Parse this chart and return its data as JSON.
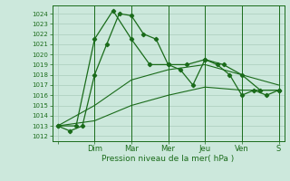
{
  "title": "",
  "xlabel": "Pression niveau de la mer( hPa )",
  "bg_color": "#cce8dc",
  "line_color": "#1a6b1a",
  "grid_color": "#aaccbb",
  "ylim": [
    1011.5,
    1024.8
  ],
  "yticks": [
    1012,
    1013,
    1014,
    1015,
    1016,
    1017,
    1018,
    1019,
    1020,
    1021,
    1022,
    1023,
    1024
  ],
  "day_labels": [
    "",
    "Dim",
    "Mar",
    "Mer",
    "Jeu",
    "Ven",
    "S"
  ],
  "day_positions": [
    0,
    1,
    2,
    3,
    4,
    5,
    6
  ],
  "xlim": [
    -0.15,
    6.15
  ],
  "line1_main": {
    "x": [
      0.0,
      0.33,
      0.67,
      1.0,
      1.33,
      1.67,
      2.0,
      2.33,
      2.67,
      3.0,
      3.33,
      3.67,
      4.0,
      4.33,
      4.67,
      5.0,
      5.33,
      5.67,
      6.0
    ],
    "y": [
      1013.0,
      1012.5,
      1013.0,
      1018.0,
      1021.0,
      1024.0,
      1023.8,
      1022.0,
      1021.5,
      1019.0,
      1018.5,
      1017.0,
      1019.5,
      1019.0,
      1018.0,
      1016.0,
      1016.5,
      1016.0,
      1016.5
    ]
  },
  "line2_upper": {
    "x": [
      0.0,
      0.5,
      1.0,
      1.5,
      2.0,
      2.5,
      3.0,
      3.5,
      4.0,
      4.5,
      5.0,
      5.5,
      6.0
    ],
    "y": [
      1013.0,
      1013.0,
      1021.5,
      1024.3,
      1021.5,
      1019.0,
      1019.0,
      1019.0,
      1019.5,
      1019.0,
      1018.0,
      1016.5,
      1016.5
    ]
  },
  "line3_mid": {
    "x": [
      0.0,
      1.0,
      2.0,
      3.0,
      4.0,
      5.0,
      6.0
    ],
    "y": [
      1013.0,
      1015.0,
      1017.5,
      1018.5,
      1019.0,
      1018.0,
      1017.0
    ]
  },
  "line4_lower": {
    "x": [
      0.0,
      1.0,
      2.0,
      3.0,
      4.0,
      5.0,
      6.0
    ],
    "y": [
      1013.0,
      1013.5,
      1015.0,
      1016.0,
      1016.8,
      1016.5,
      1016.5
    ]
  }
}
